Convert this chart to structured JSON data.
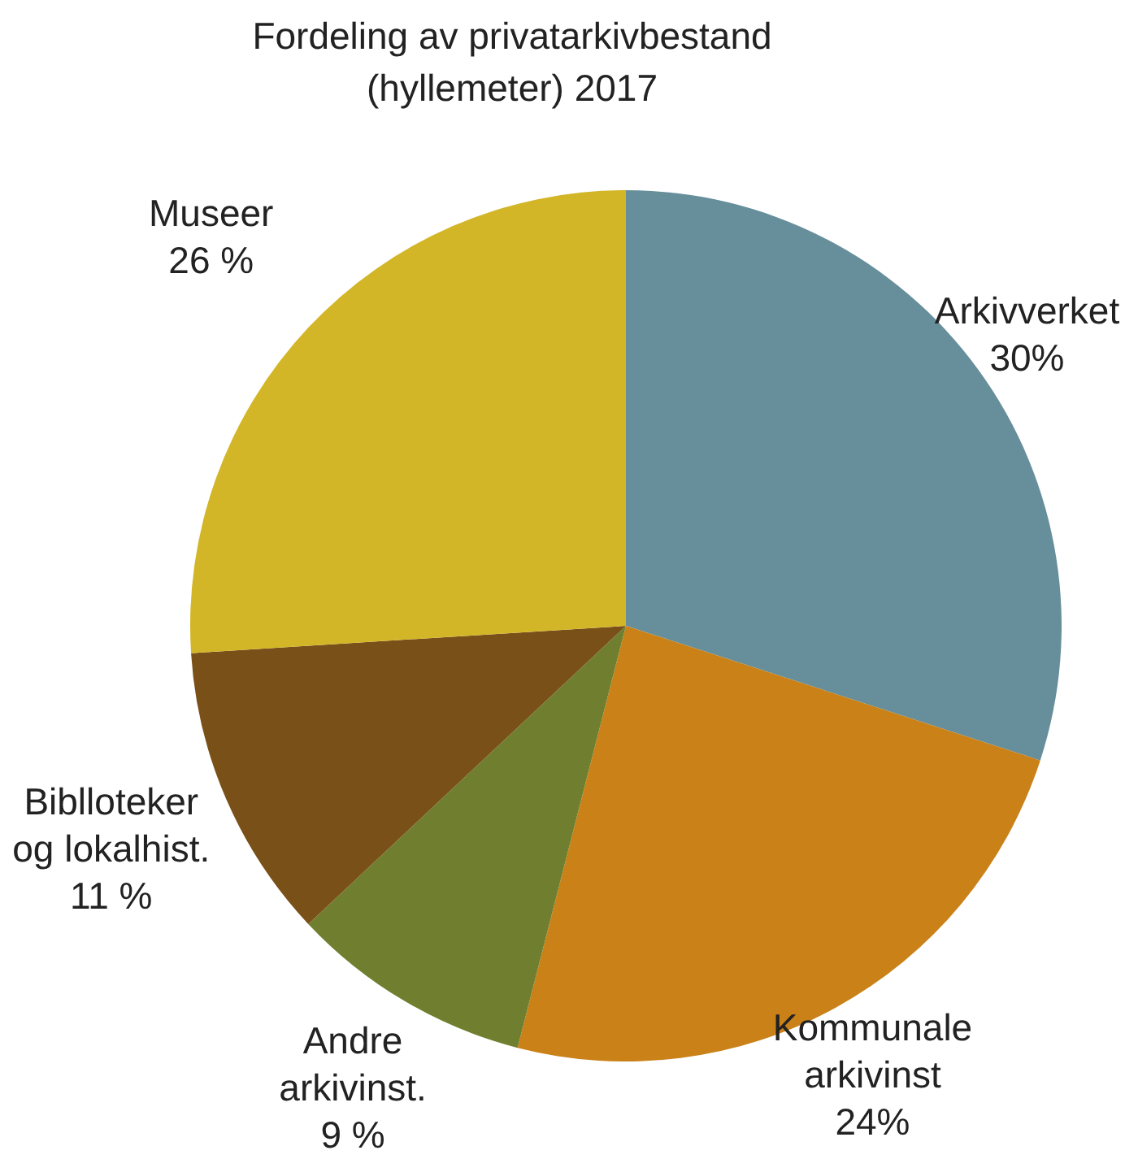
{
  "chart_data": {
    "type": "pie",
    "title": "Fordeling av privatarkivbestand\n(hyllemeter) 2017",
    "categories": [
      "Arkivverket",
      "Kommunale\narkivinst",
      "Andre\narkivinst.",
      "Biblloteker\nog lokalhist.",
      "Museer"
    ],
    "values": [
      30,
      24,
      9,
      11,
      26
    ],
    "value_labels": [
      "30%",
      "24%",
      "9 %",
      "11 %",
      "26 %"
    ],
    "colors": [
      "#668f9b",
      "#c98118",
      "#6f7f2f",
      "#7a5019",
      "#d3b628"
    ]
  }
}
